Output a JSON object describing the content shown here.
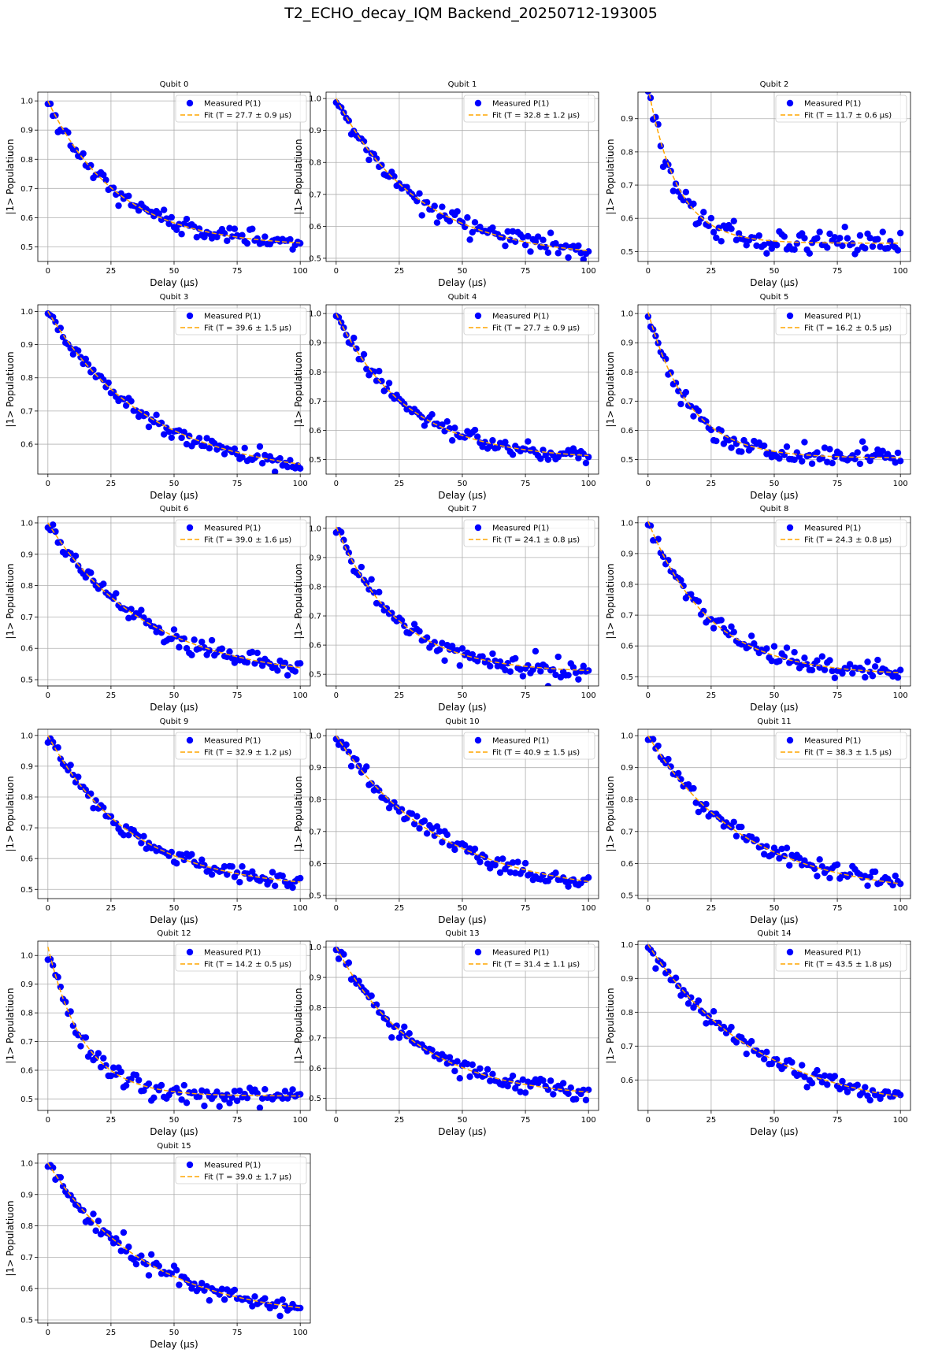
{
  "suptitle": "T2_ECHO_decay_IQM Backend_20250712-193005",
  "colors": {
    "measured": "#0000ff",
    "fit": "#ffa500",
    "grid": "#b0b0b0",
    "axes": "#000000"
  },
  "chart_data": [
    {
      "type": "scatter",
      "title": "Qubit 0",
      "xlabel": "Delay (µs)",
      "ylabel": "|1> Populatiuon",
      "xlim": [
        -4,
        104
      ],
      "ylim": [
        0.45,
        1.03
      ],
      "xticks": [
        0,
        25,
        50,
        75,
        100
      ],
      "yticks": [
        0.5,
        0.6,
        0.7,
        0.8,
        0.9,
        1.0
      ],
      "legend": [
        "Measured P(1)",
        "Fit (T = 27.7 ± 0.9 µs)"
      ],
      "legend_position": "upper-right",
      "grid": true,
      "T2": 27.7,
      "amplitude": 0.5,
      "offset": 0.5,
      "noise": 0.015,
      "n_points": 101
    },
    {
      "type": "scatter",
      "title": "Qubit 1",
      "xlabel": "Delay (µs)",
      "ylabel": "|1> Populatiuon",
      "xlim": [
        -4,
        104
      ],
      "ylim": [
        0.49,
        1.02
      ],
      "xticks": [
        0,
        25,
        50,
        75,
        100
      ],
      "yticks": [
        0.5,
        0.6,
        0.7,
        0.8,
        0.9,
        1.0
      ],
      "legend": [
        "Measured P(1)",
        "Fit (T = 32.8 ± 1.2 µs)"
      ],
      "legend_position": "upper-right",
      "grid": true,
      "T2": 32.8,
      "amplitude": 0.5,
      "offset": 0.5,
      "noise": 0.015,
      "n_points": 101
    },
    {
      "type": "scatter",
      "title": "Qubit 2",
      "xlabel": "Delay (µs)",
      "ylabel": "|1> Populatiuon",
      "xlim": [
        -4,
        104
      ],
      "ylim": [
        0.47,
        0.98
      ],
      "xticks": [
        0,
        25,
        50,
        75,
        100
      ],
      "yticks": [
        0.5,
        0.6,
        0.7,
        0.8,
        0.9
      ],
      "legend": [
        "Measured P(1)",
        "Fit (T = 11.7 ± 0.6 µs)"
      ],
      "legend_position": "upper-right",
      "grid": true,
      "T2": 11.7,
      "amplitude": 0.47,
      "offset": 0.525,
      "noise": 0.018,
      "n_points": 101
    },
    {
      "type": "scatter",
      "title": "Qubit 3",
      "xlabel": "Delay (µs)",
      "ylabel": "|1> Populatiuon",
      "xlim": [
        -4,
        104
      ],
      "ylim": [
        0.51,
        1.02
      ],
      "xticks": [
        0,
        25,
        50,
        75,
        100
      ],
      "yticks": [
        0.6,
        0.7,
        0.8,
        0.9,
        1.0
      ],
      "legend": [
        "Measured P(1)",
        "Fit (T = 39.6 ± 1.5 µs)"
      ],
      "legend_position": "upper-right",
      "grid": true,
      "T2": 39.6,
      "amplitude": 0.5,
      "offset": 0.5,
      "noise": 0.013,
      "n_points": 101
    },
    {
      "type": "scatter",
      "title": "Qubit 4",
      "xlabel": "Delay (µs)",
      "ylabel": "|1> Populatiuon",
      "xlim": [
        -4,
        104
      ],
      "ylim": [
        0.45,
        1.03
      ],
      "xticks": [
        0,
        25,
        50,
        75,
        100
      ],
      "yticks": [
        0.5,
        0.6,
        0.7,
        0.8,
        0.9,
        1.0
      ],
      "legend": [
        "Measured P(1)",
        "Fit (T = 27.7 ± 0.9 µs)"
      ],
      "legend_position": "upper-right",
      "grid": true,
      "T2": 27.7,
      "amplitude": 0.5,
      "offset": 0.5,
      "noise": 0.015,
      "n_points": 101
    },
    {
      "type": "scatter",
      "title": "Qubit 5",
      "xlabel": "Delay (µs)",
      "ylabel": "|1> Populatiuon",
      "xlim": [
        -4,
        104
      ],
      "ylim": [
        0.45,
        1.03
      ],
      "xticks": [
        0,
        25,
        50,
        75,
        100
      ],
      "yticks": [
        0.5,
        0.6,
        0.7,
        0.8,
        0.9,
        1.0
      ],
      "legend": [
        "Measured P(1)",
        "Fit (T = 16.2 ± 0.5 µs)"
      ],
      "legend_position": "upper-right",
      "grid": true,
      "T2": 16.2,
      "amplitude": 0.5,
      "offset": 0.505,
      "noise": 0.016,
      "n_points": 101
    },
    {
      "type": "scatter",
      "title": "Qubit 6",
      "xlabel": "Delay (µs)",
      "ylabel": "|1> Populatiuon",
      "xlim": [
        -4,
        104
      ],
      "ylim": [
        0.48,
        1.02
      ],
      "xticks": [
        0,
        25,
        50,
        75,
        100
      ],
      "yticks": [
        0.5,
        0.6,
        0.7,
        0.8,
        0.9,
        1.0
      ],
      "legend": [
        "Measured P(1)",
        "Fit (T = 39.0 ± 1.6 µs)"
      ],
      "legend_position": "upper-right",
      "grid": true,
      "T2": 39.0,
      "amplitude": 0.5,
      "offset": 0.5,
      "noise": 0.014,
      "n_points": 101
    },
    {
      "type": "scatter",
      "title": "Qubit 7",
      "xlabel": "Delay (µs)",
      "ylabel": "|1> Populatiuon",
      "xlim": [
        -4,
        104
      ],
      "ylim": [
        0.46,
        1.04
      ],
      "xticks": [
        0,
        25,
        50,
        75,
        100
      ],
      "yticks": [
        0.5,
        0.6,
        0.7,
        0.8,
        0.9,
        1.0
      ],
      "legend": [
        "Measured P(1)",
        "Fit (T = 24.1 ± 0.8 µs)"
      ],
      "legend_position": "upper-right",
      "grid": true,
      "T2": 24.1,
      "amplitude": 0.5,
      "offset": 0.505,
      "noise": 0.016,
      "n_points": 101
    },
    {
      "type": "scatter",
      "title": "Qubit 8",
      "xlabel": "Delay (µs)",
      "ylabel": "|1> Populatiuon",
      "xlim": [
        -4,
        104
      ],
      "ylim": [
        0.47,
        1.02
      ],
      "xticks": [
        0,
        25,
        50,
        75,
        100
      ],
      "yticks": [
        0.5,
        0.6,
        0.7,
        0.8,
        0.9,
        1.0
      ],
      "legend": [
        "Measured P(1)",
        "Fit (T = 24.3 ± 0.8 µs)"
      ],
      "legend_position": "upper-right",
      "grid": true,
      "T2": 24.3,
      "amplitude": 0.5,
      "offset": 0.505,
      "noise": 0.016,
      "n_points": 101
    },
    {
      "type": "scatter",
      "title": "Qubit 9",
      "xlabel": "Delay (µs)",
      "ylabel": "|1> Populatiuon",
      "xlim": [
        -4,
        104
      ],
      "ylim": [
        0.47,
        1.02
      ],
      "xticks": [
        0,
        25,
        50,
        75,
        100
      ],
      "yticks": [
        0.5,
        0.6,
        0.7,
        0.8,
        0.9,
        1.0
      ],
      "legend": [
        "Measured P(1)",
        "Fit (T = 32.9 ± 1.2 µs)"
      ],
      "legend_position": "upper-right",
      "grid": true,
      "T2": 32.9,
      "amplitude": 0.5,
      "offset": 0.5,
      "noise": 0.014,
      "n_points": 101
    },
    {
      "type": "scatter",
      "title": "Qubit 10",
      "xlabel": "Delay (µs)",
      "ylabel": "|1> Populatiuon",
      "xlim": [
        -4,
        104
      ],
      "ylim": [
        0.49,
        1.02
      ],
      "xticks": [
        0,
        25,
        50,
        75,
        100
      ],
      "yticks": [
        0.5,
        0.6,
        0.7,
        0.8,
        0.9,
        1.0
      ],
      "legend": [
        "Measured P(1)",
        "Fit (T = 40.9 ± 1.5 µs)"
      ],
      "legend_position": "upper-right",
      "grid": true,
      "T2": 40.9,
      "amplitude": 0.5,
      "offset": 0.5,
      "noise": 0.014,
      "n_points": 101
    },
    {
      "type": "scatter",
      "title": "Qubit 11",
      "xlabel": "Delay (µs)",
      "ylabel": "|1> Populatiuon",
      "xlim": [
        -4,
        104
      ],
      "ylim": [
        0.49,
        1.02
      ],
      "xticks": [
        0,
        25,
        50,
        75,
        100
      ],
      "yticks": [
        0.5,
        0.6,
        0.7,
        0.8,
        0.9,
        1.0
      ],
      "legend": [
        "Measured P(1)",
        "Fit (T = 38.3 ± 1.5 µs)"
      ],
      "legend_position": "upper-right",
      "grid": true,
      "T2": 38.3,
      "amplitude": 0.5,
      "offset": 0.5,
      "noise": 0.014,
      "n_points": 101
    },
    {
      "type": "scatter",
      "title": "Qubit 12",
      "xlabel": "Delay (µs)",
      "ylabel": "|1> Populatiuon",
      "xlim": [
        -4,
        104
      ],
      "ylim": [
        0.46,
        1.05
      ],
      "xticks": [
        0,
        25,
        50,
        75,
        100
      ],
      "yticks": [
        0.5,
        0.6,
        0.7,
        0.8,
        0.9,
        1.0
      ],
      "legend": [
        "Measured P(1)",
        "Fit (T = 14.2 ± 0.5 µs)"
      ],
      "legend_position": "upper-right",
      "grid": true,
      "T2": 14.2,
      "amplitude": 0.52,
      "offset": 0.51,
      "noise": 0.016,
      "n_points": 101
    },
    {
      "type": "scatter",
      "title": "Qubit 13",
      "xlabel": "Delay (µs)",
      "ylabel": "|1> Populatiuon",
      "xlim": [
        -4,
        104
      ],
      "ylim": [
        0.46,
        1.02
      ],
      "xticks": [
        0,
        25,
        50,
        75,
        100
      ],
      "yticks": [
        0.5,
        0.6,
        0.7,
        0.8,
        0.9,
        1.0
      ],
      "legend": [
        "Measured P(1)",
        "Fit (T = 31.4 ± 1.1 µs)"
      ],
      "legend_position": "upper-right",
      "grid": true,
      "T2": 31.4,
      "amplitude": 0.5,
      "offset": 0.5,
      "noise": 0.015,
      "n_points": 101
    },
    {
      "type": "scatter",
      "title": "Qubit 14",
      "xlabel": "Delay (µs)",
      "ylabel": "|1> Populatiuon",
      "xlim": [
        -4,
        104
      ],
      "ylim": [
        0.51,
        1.01
      ],
      "xticks": [
        0,
        25,
        50,
        75,
        100
      ],
      "yticks": [
        0.6,
        0.7,
        0.8,
        0.9,
        1.0
      ],
      "legend": [
        "Measured P(1)",
        "Fit (T = 43.5 ± 1.8 µs)"
      ],
      "legend_position": "upper-right",
      "grid": true,
      "T2": 43.5,
      "amplitude": 0.5,
      "offset": 0.5,
      "noise": 0.013,
      "n_points": 101
    },
    {
      "type": "scatter",
      "title": "Qubit 15",
      "xlabel": "Delay (µs)",
      "ylabel": "|1> Populatiuon",
      "xlim": [
        -4,
        104
      ],
      "ylim": [
        0.49,
        1.03
      ],
      "xticks": [
        0,
        25,
        50,
        75,
        100
      ],
      "yticks": [
        0.5,
        0.6,
        0.7,
        0.8,
        0.9,
        1.0
      ],
      "legend": [
        "Measured P(1)",
        "Fit (T = 39.0 ± 1.7 µs)"
      ],
      "legend_position": "upper-right",
      "grid": true,
      "T2": 39.0,
      "amplitude": 0.5,
      "offset": 0.5,
      "noise": 0.014,
      "n_points": 101
    }
  ]
}
